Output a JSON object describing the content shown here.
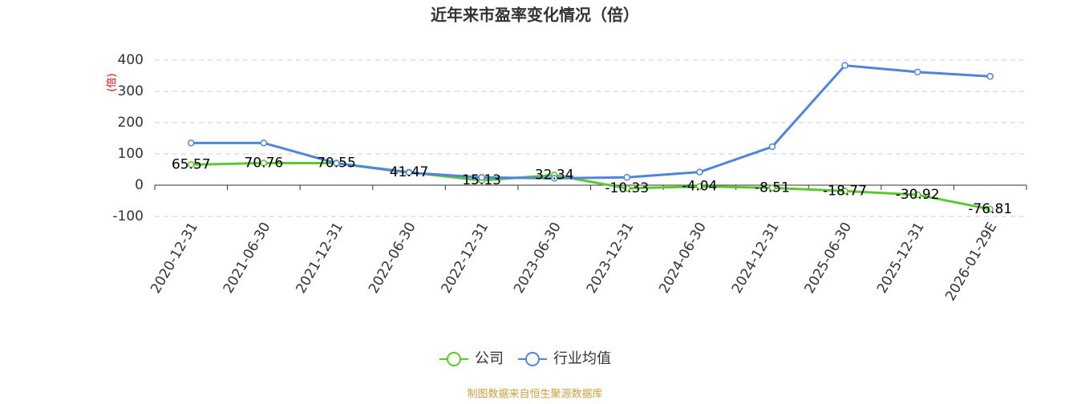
{
  "chart_data": {
    "type": "line",
    "title": "近年来市盈率变化情况（倍）",
    "y_label": "(倍)",
    "categories": [
      "2020-12-31",
      "2021-06-30",
      "2021-12-31",
      "2022-06-30",
      "2022-12-31",
      "2023-06-30",
      "2023-12-31",
      "2024-06-30",
      "2024-12-31",
      "2025-06-30",
      "2025-12-31",
      "2026-01-29E"
    ],
    "series": [
      {
        "name": "公司",
        "color": "#5cc72e",
        "values": [
          65.57,
          70.76,
          70.55,
          41.47,
          15.13,
          32.34,
          -10.33,
          -4.04,
          -8.51,
          -18.77,
          -30.92,
          -76.81
        ]
      },
      {
        "name": "行业均值",
        "color": "#4e86de",
        "values": [
          135,
          135,
          70,
          40,
          25,
          22,
          25,
          42,
          123,
          383,
          362,
          348
        ]
      }
    ],
    "ylim": [
      -100,
      400
    ],
    "yticks": [
      -100,
      0,
      100,
      200,
      300,
      400
    ],
    "grid": true,
    "source": "制图数据来自恒生聚源数据库"
  }
}
